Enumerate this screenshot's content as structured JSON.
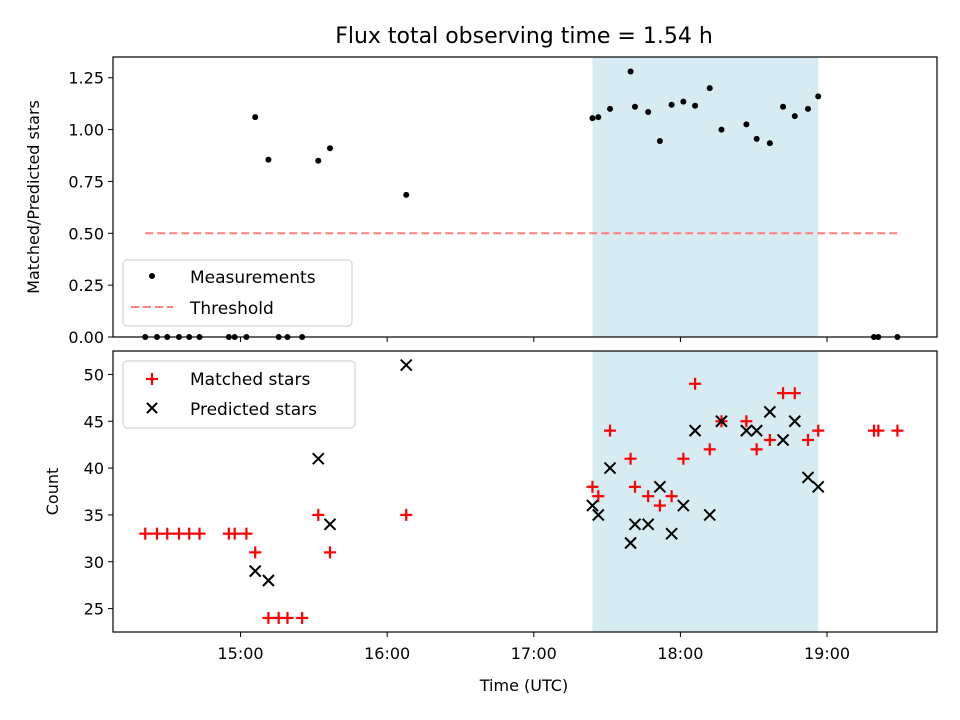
{
  "title": "Flux total observing time = 1.54 h",
  "top": {
    "ylabel": "Matched/Predicted stars",
    "ylim": [
      0,
      1.35
    ],
    "yticks": [
      0.0,
      0.25,
      0.5,
      0.75,
      1.0,
      1.25
    ],
    "ytick_labels": [
      "0.00",
      "0.25",
      "0.50",
      "0.75",
      "1.00",
      "1.25"
    ],
    "legend": {
      "measurements": "Measurements",
      "threshold": "Threshold"
    }
  },
  "bottom": {
    "ylabel": "Count",
    "ylim": [
      22.5,
      52.5
    ],
    "yticks": [
      25,
      30,
      35,
      40,
      45,
      50
    ],
    "ytick_labels": [
      "25",
      "30",
      "35",
      "40",
      "45",
      "50"
    ],
    "legend": {
      "matched": "Matched stars",
      "predicted": "Predicted stars"
    }
  },
  "xaxis": {
    "xlabel": "Time (UTC)",
    "ticks": [
      15,
      16,
      17,
      18,
      19
    ],
    "tick_labels": [
      "15:00",
      "16:00",
      "17:00",
      "18:00",
      "19:00"
    ],
    "xlim": [
      14.13,
      19.75
    ]
  },
  "colors": {
    "band": "#add8e6",
    "measurements": "#000000",
    "threshold": "#ff7f7f",
    "matched": "#ff0000",
    "predicted": "#000000"
  },
  "chart_data": [
    {
      "type": "scatter",
      "title": "Flux total observing time = 1.54 h",
      "xlabel": "",
      "ylabel": "Matched/Predicted stars",
      "ylim": [
        0,
        1.35
      ],
      "shaded_band": {
        "x": [
          17.4,
          18.94
        ]
      },
      "threshold": {
        "name": "Threshold",
        "x": [
          14.35,
          19.48
        ],
        "y": 0.5
      },
      "series": [
        {
          "name": "Measurements",
          "points": [
            [
              14.35,
              0
            ],
            [
              14.43,
              0
            ],
            [
              14.5,
              0
            ],
            [
              14.58,
              0
            ],
            [
              14.65,
              0
            ],
            [
              14.72,
              0
            ],
            [
              14.92,
              0
            ],
            [
              14.96,
              0
            ],
            [
              15.04,
              0
            ],
            [
              15.1,
              1.06
            ],
            [
              15.19,
              0.855
            ],
            [
              15.26,
              0
            ],
            [
              15.32,
              0
            ],
            [
              15.42,
              0
            ],
            [
              15.53,
              0.85
            ],
            [
              15.61,
              0.91
            ],
            [
              16.13,
              0.685
            ],
            [
              17.4,
              1.055
            ],
            [
              17.44,
              1.06
            ],
            [
              17.52,
              1.1
            ],
            [
              17.66,
              1.28
            ],
            [
              17.69,
              1.11
            ],
            [
              17.78,
              1.085
            ],
            [
              17.86,
              0.945
            ],
            [
              17.94,
              1.12
            ],
            [
              18.02,
              1.135
            ],
            [
              18.1,
              1.115
            ],
            [
              18.2,
              1.2
            ],
            [
              18.28,
              1.0
            ],
            [
              18.45,
              1.025
            ],
            [
              18.52,
              0.955
            ],
            [
              18.61,
              0.935
            ],
            [
              18.7,
              1.11
            ],
            [
              18.78,
              1.065
            ],
            [
              18.87,
              1.1
            ],
            [
              18.94,
              1.16
            ],
            [
              19.32,
              0
            ],
            [
              19.35,
              0
            ],
            [
              19.48,
              0
            ]
          ]
        }
      ]
    },
    {
      "type": "scatter",
      "xlabel": "Time (UTC)",
      "ylabel": "Count",
      "ylim": [
        22.5,
        52.5
      ],
      "shaded_band": {
        "x": [
          17.4,
          18.94
        ]
      },
      "series": [
        {
          "name": "Matched stars",
          "marker": "+",
          "points": [
            [
              14.35,
              33
            ],
            [
              14.43,
              33
            ],
            [
              14.5,
              33
            ],
            [
              14.58,
              33
            ],
            [
              14.65,
              33
            ],
            [
              14.72,
              33
            ],
            [
              14.92,
              33
            ],
            [
              14.96,
              33
            ],
            [
              15.04,
              33
            ],
            [
              15.1,
              31
            ],
            [
              15.19,
              24
            ],
            [
              15.26,
              24
            ],
            [
              15.32,
              24
            ],
            [
              15.42,
              24
            ],
            [
              15.53,
              35
            ],
            [
              15.61,
              31
            ],
            [
              16.13,
              35
            ],
            [
              17.4,
              38
            ],
            [
              17.44,
              37
            ],
            [
              17.52,
              44
            ],
            [
              17.66,
              41
            ],
            [
              17.69,
              38
            ],
            [
              17.78,
              37
            ],
            [
              17.86,
              36
            ],
            [
              17.94,
              37
            ],
            [
              18.02,
              41
            ],
            [
              18.1,
              49
            ],
            [
              18.2,
              42
            ],
            [
              18.28,
              45
            ],
            [
              18.45,
              45
            ],
            [
              18.52,
              42
            ],
            [
              18.61,
              43
            ],
            [
              18.7,
              48
            ],
            [
              18.78,
              48
            ],
            [
              18.87,
              43
            ],
            [
              18.94,
              44
            ],
            [
              19.32,
              44
            ],
            [
              19.35,
              44
            ],
            [
              19.48,
              44
            ]
          ]
        },
        {
          "name": "Predicted stars",
          "marker": "x",
          "points": [
            [
              15.1,
              29
            ],
            [
              15.19,
              28
            ],
            [
              15.53,
              41
            ],
            [
              15.61,
              34
            ],
            [
              16.13,
              51
            ],
            [
              17.4,
              36
            ],
            [
              17.44,
              35
            ],
            [
              17.52,
              40
            ],
            [
              17.66,
              32
            ],
            [
              17.69,
              34
            ],
            [
              17.78,
              34
            ],
            [
              17.86,
              38
            ],
            [
              17.94,
              33
            ],
            [
              18.02,
              36
            ],
            [
              18.1,
              44
            ],
            [
              18.2,
              35
            ],
            [
              18.28,
              45
            ],
            [
              18.45,
              44
            ],
            [
              18.52,
              44
            ],
            [
              18.61,
              46
            ],
            [
              18.7,
              43
            ],
            [
              18.78,
              45
            ],
            [
              18.87,
              39
            ],
            [
              18.94,
              38
            ]
          ]
        }
      ]
    }
  ]
}
